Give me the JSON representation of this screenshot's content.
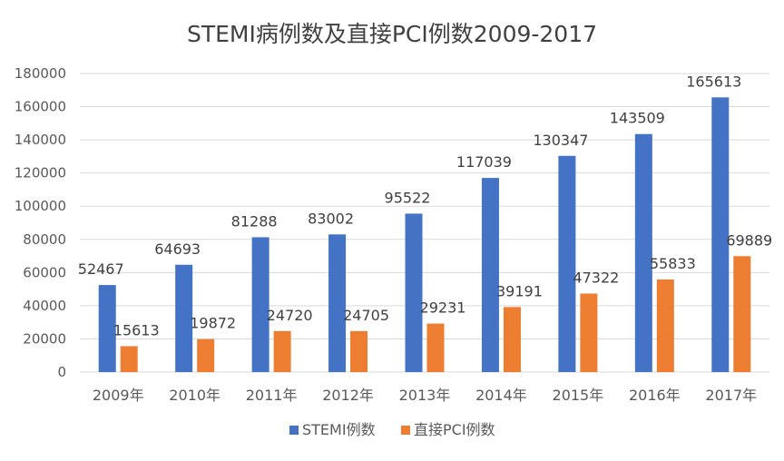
{
  "chart_data": {
    "type": "bar",
    "title": "STEMI病例数及直接PCI例数2009-2017",
    "categories": [
      "2009年",
      "2010年",
      "2011年",
      "2012年",
      "2013年",
      "2014年",
      "2015年",
      "2016年",
      "2017年"
    ],
    "series": [
      {
        "name": "STEMI例数",
        "color": "#4472C4",
        "values": [
          52467,
          64693,
          81288,
          83002,
          95522,
          117039,
          130347,
          143509,
          165613
        ]
      },
      {
        "name": "直接PCI例数",
        "color": "#ED7D31",
        "values": [
          15613,
          19872,
          24720,
          24705,
          29231,
          39191,
          47322,
          55833,
          69889
        ]
      }
    ],
    "ylim": [
      0,
      180000
    ],
    "yticks": [
      0,
      20000,
      40000,
      60000,
      80000,
      100000,
      120000,
      140000,
      160000,
      180000
    ],
    "grid": true,
    "legend_position": "bottom"
  }
}
